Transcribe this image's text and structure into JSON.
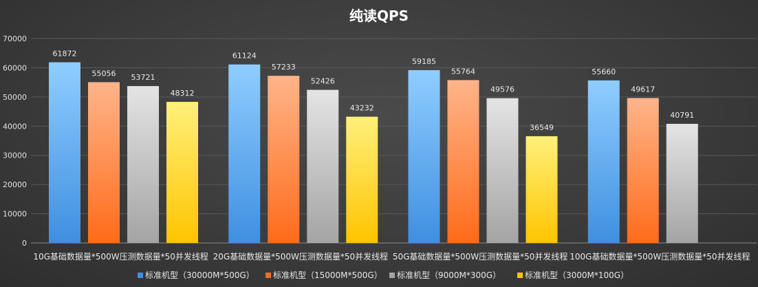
{
  "chart_data": {
    "type": "bar",
    "title": "纯读QPS",
    "categories": [
      "10G基础数据量*500W压测数据量*50并发线程",
      "20G基础数据量*500W压测数据量*50并发线程",
      "50G基础数据量*500W压测数据量*50并发线程",
      "100G基础数据量*500W压测数据量*50并发线程"
    ],
    "series": [
      {
        "name": "标准机型（30000M*500G）",
        "values": [
          61872,
          61124,
          59185,
          55660
        ]
      },
      {
        "name": "标准机型（15000M*500G）",
        "values": [
          55056,
          57233,
          55764,
          49617
        ]
      },
      {
        "name": "标准机型（9000M*300G）",
        "values": [
          53721,
          52426,
          49576,
          40791
        ]
      },
      {
        "name": "标准机型（3000M*100G）",
        "values": [
          48312,
          43232,
          36549,
          null
        ]
      }
    ],
    "ylim": [
      0,
      70000
    ],
    "yticks": [
      0,
      10000,
      20000,
      30000,
      40000,
      50000,
      60000,
      70000
    ],
    "xlabel": "",
    "ylabel": "",
    "grid": true,
    "legend_position": "bottom",
    "colors": [
      {
        "top": "#8fcdff",
        "bottom": "#3f8fe0"
      },
      {
        "top": "#ffb48a",
        "bottom": "#ff6b1a"
      },
      {
        "top": "#e4e4e4",
        "bottom": "#a4a4a4"
      },
      {
        "top": "#fff07a",
        "bottom": "#ffc400"
      }
    ]
  }
}
